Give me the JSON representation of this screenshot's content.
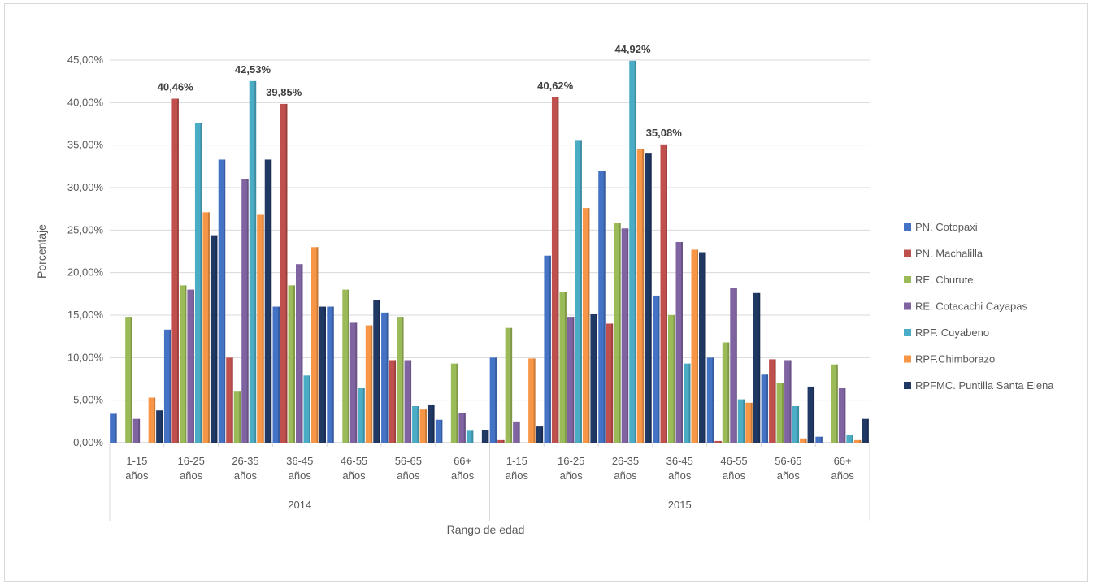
{
  "chart_data": {
    "type": "bar",
    "title": "",
    "xlabel": "Rango de edad",
    "ylabel": "Porcentaje",
    "ylim": [
      0,
      45
    ],
    "yticks": [
      "0,00%",
      "5,00%",
      "10,00%",
      "15,00%",
      "20,00%",
      "25,00%",
      "30,00%",
      "35,00%",
      "40,00%",
      "45,00%"
    ],
    "groups": [
      {
        "label": "2014",
        "categories": [
          "1-15 años",
          "16-25 años",
          "26-35 años",
          "36-45 años",
          "46-55 años",
          "56-65 años",
          "66+ años"
        ]
      },
      {
        "label": "2015",
        "categories": [
          "1-15 años",
          "16-25 años",
          "26-35 años",
          "36-45 años",
          "46-55 años",
          "56-65 años",
          "66+ años"
        ]
      }
    ],
    "legend_position": "right",
    "grid": true,
    "series": [
      {
        "name": "PN. Cotopaxi",
        "color": "#4472c4",
        "values": [
          3.4,
          13.3,
          33.3,
          16.0,
          16.0,
          15.3,
          2.7,
          10.0,
          22.0,
          32.0,
          17.3,
          10.0,
          8.0,
          0.7
        ]
      },
      {
        "name": "PN. Machalilla",
        "color": "#c0504d",
        "values": [
          0.0,
          40.46,
          10.0,
          39.85,
          0.0,
          9.7,
          0.0,
          0.3,
          40.62,
          14.0,
          35.08,
          0.2,
          9.8,
          0.0
        ]
      },
      {
        "name": "RE. Churute",
        "color": "#9bbb59",
        "values": [
          14.8,
          18.5,
          6.0,
          18.5,
          18.0,
          14.8,
          9.3,
          13.5,
          17.7,
          25.8,
          15.0,
          11.8,
          7.0,
          9.2
        ]
      },
      {
        "name": "RE. Cotacachi Cayapas",
        "color": "#8064a2",
        "values": [
          2.8,
          18.0,
          31.0,
          21.0,
          14.1,
          9.7,
          3.5,
          2.5,
          14.8,
          25.2,
          23.6,
          18.2,
          9.7,
          6.4
        ]
      },
      {
        "name": "RPF. Cuyabeno",
        "color": "#4bacc6",
        "values": [
          0.0,
          37.6,
          42.53,
          7.9,
          6.4,
          4.3,
          1.4,
          0.0,
          35.6,
          44.92,
          9.3,
          5.1,
          4.3,
          0.9
        ]
      },
      {
        "name": "RPF.Chimborazo",
        "color": "#f79646",
        "values": [
          5.3,
          27.1,
          26.8,
          23.0,
          13.8,
          3.9,
          0.0,
          9.9,
          27.6,
          34.5,
          22.7,
          4.7,
          0.5,
          0.3
        ]
      },
      {
        "name": "RPFMC. Puntilla Santa Elena",
        "color": "#1f3864",
        "values": [
          3.8,
          24.4,
          33.3,
          16.0,
          16.8,
          4.4,
          1.5,
          1.9,
          15.1,
          34.0,
          22.4,
          17.6,
          6.6,
          2.8
        ]
      }
    ],
    "annotations": [
      {
        "text": "40,46%",
        "group": 0,
        "category": 1,
        "series": 1,
        "value": 40.46
      },
      {
        "text": "42,53%",
        "group": 0,
        "category": 2,
        "series": 4,
        "value": 42.53
      },
      {
        "text": "39,85%",
        "group": 0,
        "category": 3,
        "series": 1,
        "value": 39.85
      },
      {
        "text": "40,62%",
        "group": 1,
        "category": 1,
        "series": 1,
        "value": 40.62
      },
      {
        "text": "44,92%",
        "group": 1,
        "category": 2,
        "series": 4,
        "value": 44.92
      },
      {
        "text": "35,08%",
        "group": 1,
        "category": 3,
        "series": 1,
        "value": 35.08
      }
    ]
  }
}
